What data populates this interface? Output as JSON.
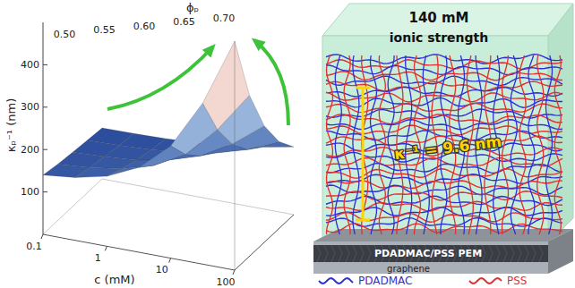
{
  "chart_data": {
    "type": "surface",
    "xlabel": "c (mM)",
    "ylabel": "ϕₚ",
    "zlabel": "κₚ⁻¹ (nm)",
    "log": "x",
    "x": [
      0.1,
      0.316,
      1,
      3.16,
      10,
      31.6,
      100
    ],
    "y": [
      0.5,
      0.55,
      0.6,
      0.65,
      0.7
    ],
    "values": [
      [
        120,
        124,
        128,
        133,
        140
      ],
      [
        121,
        126,
        132,
        139,
        148
      ],
      [
        123,
        130,
        138,
        150,
        165
      ],
      [
        127,
        137,
        152,
        172,
        200
      ],
      [
        133,
        150,
        176,
        212,
        265
      ],
      [
        145,
        172,
        218,
        285,
        380
      ],
      [
        160,
        205,
        275,
        380,
        540
      ]
    ],
    "xlim": [
      0.1,
      100
    ],
    "xticks": [
      0.1,
      1,
      10,
      100
    ],
    "ylim": [
      0.5,
      0.7
    ],
    "yticks": [
      {
        "value": 0.5,
        "label": "0.50"
      },
      {
        "value": 0.55,
        "label": "0.55"
      },
      {
        "value": 0.6,
        "label": "0.60"
      },
      {
        "value": 0.65,
        "label": "0.65"
      },
      {
        "value": 0.7,
        "label": "0.70"
      }
    ],
    "zlim": [
      0,
      500
    ],
    "zticks": [
      100,
      200,
      300,
      400
    ]
  },
  "schematic": {
    "top_text": [
      "140 mM",
      "ionic strength"
    ],
    "thickness_label": "κ⁻¹ = 9.6 nm",
    "film_label": "PDADMAC/PSS PEM",
    "substrate_label": "graphene",
    "legend": [
      {
        "name": "PDADMAC",
        "color": "#2f2fd6"
      },
      {
        "name": "PSS",
        "color": "#e0302f"
      }
    ]
  }
}
